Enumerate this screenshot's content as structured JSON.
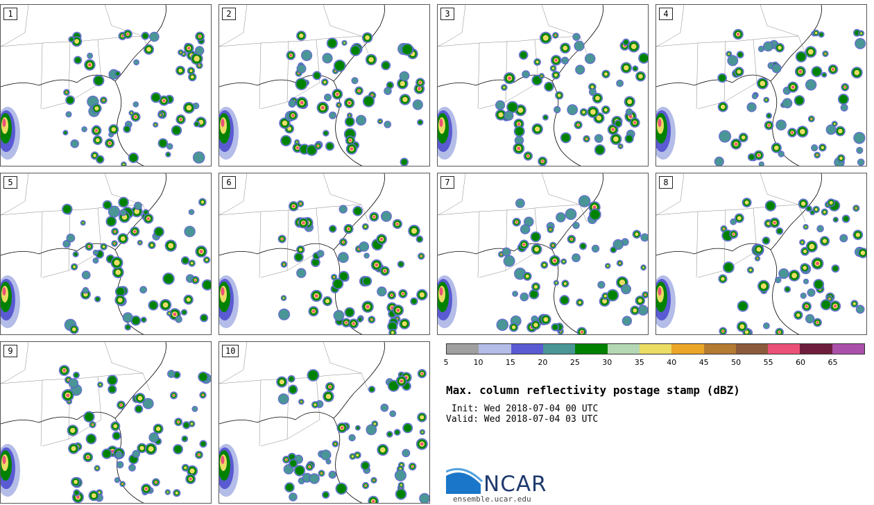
{
  "members": [
    "1",
    "2",
    "3",
    "4",
    "5",
    "6",
    "7",
    "8",
    "9",
    "10"
  ],
  "colorbar": {
    "colors": [
      "#a0a0a0",
      "#b4bce8",
      "#5a5ad2",
      "#4a9696",
      "#008200",
      "#b4d8b4",
      "#ebdc64",
      "#eba628",
      "#b47b32",
      "#8c5a3c",
      "#eb5078",
      "#6e1e3c",
      "#aa50aa"
    ],
    "ticks": [
      "5",
      "10",
      "15",
      "20",
      "25",
      "30",
      "35",
      "40",
      "45",
      "50",
      "55",
      "60",
      "65"
    ]
  },
  "title": "Max. column reflectivity postage stamp (dBZ)",
  "init": "Init: Wed 2018-07-04 00 UTC",
  "valid": "Valid: Wed 2018-07-04 03 UTC",
  "logo": {
    "name": "NCAR",
    "icon": "ncar-logo-icon",
    "site": "ensemble.ucar.edu"
  }
}
